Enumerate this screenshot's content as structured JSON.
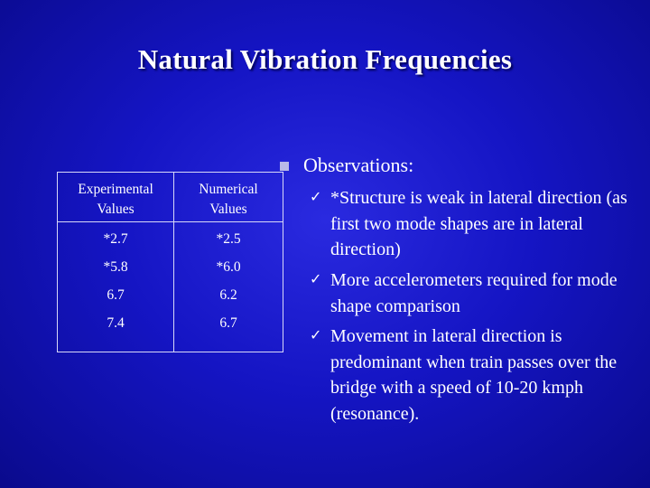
{
  "slide": {
    "title": "Natural Vibration Frequencies",
    "table": {
      "headers": [
        "Experimental Values",
        "Numerical Values"
      ],
      "header_lines": [
        [
          "Experimental",
          "Values"
        ],
        [
          "Numerical",
          "Values"
        ]
      ],
      "experimental": [
        "*2.7",
        "*5.8",
        "6.7",
        "7.4"
      ],
      "numerical": [
        "*2.5",
        "*6.0",
        "6.2",
        "6.7"
      ]
    },
    "observations": {
      "heading": "Observations:",
      "bullet_icon": "square-bullet-icon",
      "check_icon": "checkmark-icon",
      "check_glyph": "✓",
      "items": [
        "*Structure is weak in lateral direction (as first two mode shapes are in lateral direction)",
        "More accelerometers required for mode shape comparison",
        "Movement in lateral direction is predominant when train passes over the bridge with a speed of 10-20 kmph (resonance)."
      ]
    },
    "colors": {
      "background": "#1515c4",
      "text": "#ffffff",
      "bullet": "#b8b8e8"
    }
  }
}
